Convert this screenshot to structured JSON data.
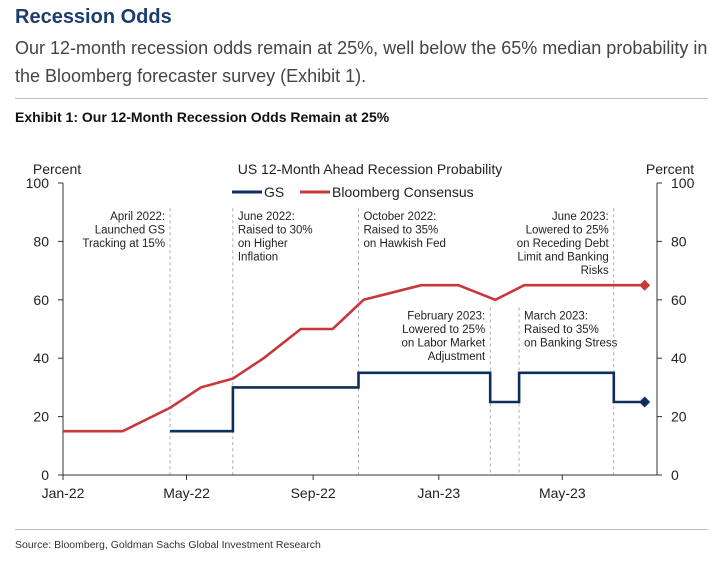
{
  "heading": "Recession Odds",
  "intro": "Our 12-month recession odds remain at 25%, well below the 65% median probability in the Bloomberg forecaster survey (Exhibit 1).",
  "exhibit_title": "Exhibit 1: Our 12-Month Recession Odds Remain at 25%",
  "source": "Source: Bloomberg, Goldman Sachs Global Investment Research",
  "chart_data": {
    "type": "line",
    "title": "US 12-Month Ahead Recession Probability",
    "ylabel_left": "Percent",
    "ylabel_right": "Percent",
    "ylim": [
      0,
      100
    ],
    "yticks": [
      0,
      20,
      40,
      60,
      80,
      100
    ],
    "xlim": [
      "2022-01-01",
      "2023-08-01"
    ],
    "xticks": [
      {
        "label": "Jan-22",
        "date": "2022-01-01"
      },
      {
        "label": "May-22",
        "date": "2022-05-01"
      },
      {
        "label": "Sep-22",
        "date": "2022-09-01"
      },
      {
        "label": "Jan-23",
        "date": "2023-01-01"
      },
      {
        "label": "May-23",
        "date": "2023-05-01"
      }
    ],
    "grid": false,
    "legend": "top-center",
    "series": [
      {
        "name": "GS",
        "color": "#0d2f5c",
        "step": true,
        "end_marker": "diamond",
        "points": [
          [
            "2022-04-15",
            15
          ],
          [
            "2022-06-15",
            30
          ],
          [
            "2022-10-15",
            35
          ],
          [
            "2023-02-20",
            25
          ],
          [
            "2023-03-20",
            35
          ],
          [
            "2023-06-20",
            25
          ],
          [
            "2023-07-20",
            25
          ]
        ]
      },
      {
        "name": "Bloomberg Consensus",
        "color": "#c8373a",
        "step": false,
        "end_marker": "diamond",
        "points": [
          [
            "2022-01-01",
            15
          ],
          [
            "2022-02-28",
            15
          ],
          [
            "2022-04-15",
            23
          ],
          [
            "2022-05-15",
            30
          ],
          [
            "2022-06-15",
            33
          ],
          [
            "2022-07-15",
            40
          ],
          [
            "2022-08-20",
            50
          ],
          [
            "2022-09-20",
            50
          ],
          [
            "2022-10-20",
            60
          ],
          [
            "2022-12-15",
            65
          ],
          [
            "2023-01-20",
            65
          ],
          [
            "2023-02-25",
            60
          ],
          [
            "2023-03-25",
            65
          ],
          [
            "2023-07-20",
            65
          ]
        ]
      }
    ],
    "events": [
      {
        "date": "2022-04-15",
        "lines": [
          "April 2022:",
          "Launched GS",
          "Tracking at 15%"
        ],
        "anchor": "end",
        "top_value": 90
      },
      {
        "date": "2022-06-15",
        "lines": [
          "June 2022:",
          "Raised to 30%",
          "on Higher",
          "Inflation"
        ],
        "anchor": "start",
        "top_value": 90
      },
      {
        "date": "2022-10-15",
        "lines": [
          "October 2022:",
          "Raised to 35%",
          "on Hawkish Fed"
        ],
        "anchor": "start",
        "top_value": 90
      },
      {
        "date": "2023-02-20",
        "lines": [
          "February 2023:",
          "Lowered to 25%",
          "on Labor Market",
          "Adjustment"
        ],
        "anchor": "end",
        "top_value": 56
      },
      {
        "date": "2023-03-20",
        "lines": [
          "March 2023:",
          "Raised to 35%",
          "on Banking Stress"
        ],
        "anchor": "start",
        "top_value": 56
      },
      {
        "date": "2023-06-20",
        "lines": [
          "June 2023:",
          "Lowered to 25%",
          "on Receding Debt",
          "Limit and Banking",
          "Risks"
        ],
        "anchor": "end",
        "top_value": 90
      }
    ]
  }
}
